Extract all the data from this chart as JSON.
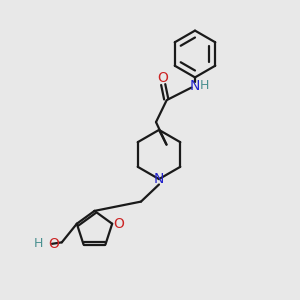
{
  "bg_color": "#e8e8e8",
  "line_color": "#1a1a1a",
  "N_color": "#2424cc",
  "O_color": "#cc2424",
  "H_color": "#4a9090",
  "line_width": 1.6,
  "font_size": 9.5,
  "xlim": [
    0,
    10
  ],
  "ylim": [
    0,
    10
  ]
}
